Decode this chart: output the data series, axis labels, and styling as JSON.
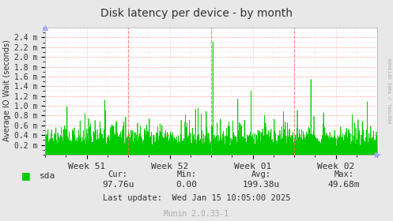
{
  "title": "Disk latency per device - by month",
  "ylabel": "Average IO Wait (seconds)",
  "background_color": "#e8e8e8",
  "plot_bg_color": "#ffffff",
  "grid_color_major": "#ff9999",
  "line_color": "#00cc00",
  "fill_color": "#00cc00",
  "x_tick_labels": [
    "Week 51",
    "Week 52",
    "Week 01",
    "Week 02"
  ],
  "y_tick_labels": [
    "0.2 m",
    "0.4 m",
    "0.6 m",
    "0.8 m",
    "1.0 m",
    "1.2 m",
    "1.4 m",
    "1.6 m",
    "1.8 m",
    "2.0 m",
    "2.2 m",
    "2.4 m"
  ],
  "ylim": [
    0,
    0.0026
  ],
  "legend_label": "sda",
  "legend_color": "#00cc00",
  "cur": "97.76u",
  "min_val": "0.00",
  "avg": "199.38u",
  "max_val": "49.68m",
  "last_update": "Wed Jan 15 10:05:00 2025",
  "munin_version": "Munin 2.0.33-1",
  "right_label": "RRDTOOL / TOBI OETIKER",
  "arrow_color": "#aaaaff",
  "x_ticks": [
    0.125,
    0.375,
    0.625,
    0.875
  ],
  "week_boundaries": [
    0.25,
    0.5,
    0.75
  ]
}
